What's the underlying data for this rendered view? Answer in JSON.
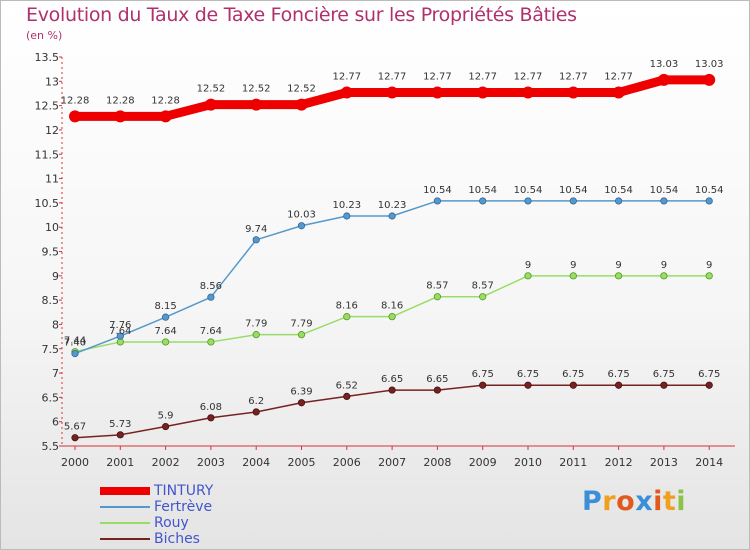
{
  "title": "Evolution du Taux de Taxe Foncière sur les Propriétés Bâties",
  "unit_label": "(en %)",
  "logo_text": "Proxiti",
  "chart_data": {
    "type": "line",
    "title": "Evolution du Taux de Taxe Foncière sur les Propriétés Bâties",
    "ylabel": "(en %)",
    "xlabel": "",
    "x": [
      "2000",
      "2001",
      "2002",
      "2003",
      "2004",
      "2005",
      "2006",
      "2007",
      "2008",
      "2009",
      "2010",
      "2011",
      "2012",
      "2013",
      "2014"
    ],
    "ylim": [
      5.5,
      13.5
    ],
    "yticks": [
      "5.5",
      "6",
      "6.5",
      "7",
      "7.5",
      "8",
      "8.5",
      "9",
      "9.5",
      "10",
      "10.5",
      "11",
      "11.5",
      "12",
      "12.5",
      "13",
      "13.5"
    ],
    "grid": false,
    "legend_position": "bottom-left",
    "series": [
      {
        "name": "TINTURY",
        "color": "#ee0000",
        "values": [
          12.28,
          12.28,
          12.28,
          12.52,
          12.52,
          12.52,
          12.77,
          12.77,
          12.77,
          12.77,
          12.77,
          12.77,
          12.77,
          13.03,
          13.03
        ],
        "labels": [
          "12.28",
          "12.28",
          "12.28",
          "12.52",
          "12.52",
          "12.52",
          "12.77",
          "12.77",
          "12.77",
          "12.77",
          "12.77",
          "12.77",
          "12.77",
          "13.03",
          "13.03"
        ]
      },
      {
        "name": "Fertrève",
        "color": "#5599cc",
        "values": [
          7.4,
          7.76,
          8.15,
          8.56,
          9.74,
          10.03,
          10.23,
          10.23,
          10.54,
          10.54,
          10.54,
          10.54,
          10.54,
          10.54,
          10.54
        ],
        "labels": [
          "7.40",
          "7.76",
          "8.15",
          "8.56",
          "9.74",
          "10.03",
          "10.23",
          "10.23",
          "10.54",
          "10.54",
          "10.54",
          "10.54",
          "10.54",
          "10.54",
          "10.54"
        ]
      },
      {
        "name": "Rouy",
        "color": "#99dd66",
        "values": [
          7.44,
          7.64,
          7.64,
          7.64,
          7.79,
          7.79,
          8.16,
          8.16,
          8.57,
          8.57,
          9,
          9,
          9,
          9,
          9
        ],
        "labels": [
          "7.44",
          "7.64",
          "7.64",
          "7.64",
          "7.79",
          "7.79",
          "8.16",
          "8.16",
          "8.57",
          "8.57",
          "9",
          "9",
          "9",
          "9",
          "9"
        ]
      },
      {
        "name": "Biches",
        "color": "#772222",
        "values": [
          5.67,
          5.73,
          5.9,
          6.08,
          6.2,
          6.39,
          6.52,
          6.65,
          6.65,
          6.75,
          6.75,
          6.75,
          6.75,
          6.75,
          6.75
        ],
        "labels": [
          "5.67",
          "5.73",
          "5.9",
          "6.08",
          "6.2",
          "6.39",
          "6.52",
          "6.65",
          "6.65",
          "6.75",
          "6.75",
          "6.75",
          "6.75",
          "6.75",
          "6.75"
        ]
      }
    ]
  }
}
